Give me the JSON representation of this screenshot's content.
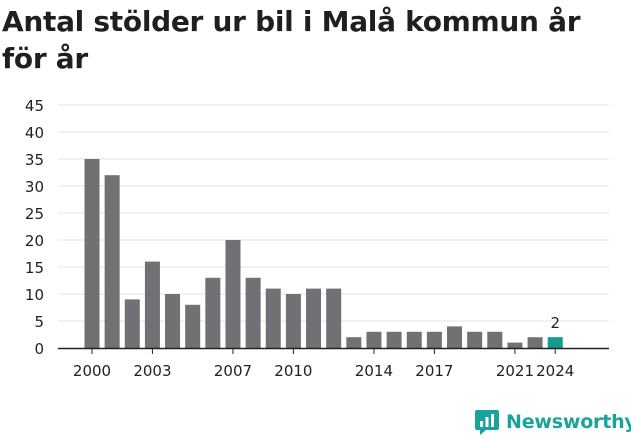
{
  "title": "Antal stölder ur bil i Malå kommun år för år",
  "brand": {
    "name": "Newsworthy",
    "logo_icon": "newsworthy-logo-icon",
    "color": "#18a49c"
  },
  "chart_data": {
    "type": "bar",
    "title": "Antal stölder ur bil i Malå kommun år för år",
    "xlabel": "",
    "ylabel": "",
    "ylim": [
      0,
      45
    ],
    "yticks": [
      0,
      5,
      10,
      15,
      20,
      25,
      30,
      35,
      40,
      45
    ],
    "grid": true,
    "categories": [
      "2000",
      "2001",
      "2002",
      "2003",
      "2004",
      "2005",
      "2006",
      "2007",
      "2008",
      "2009",
      "2010",
      "2011",
      "2012",
      "2013",
      "2014",
      "2015",
      "2016",
      "2017",
      "2018",
      "2019",
      "2020",
      "2021",
      "2022",
      "2024"
    ],
    "xtick_labels": [
      "2000",
      "2003",
      "2007",
      "2010",
      "2014",
      "2017",
      "2021",
      "2024"
    ],
    "values": [
      35,
      32,
      9,
      16,
      10,
      8,
      13,
      20,
      13,
      11,
      10,
      11,
      11,
      2,
      3,
      3,
      3,
      3,
      4,
      3,
      3,
      1,
      2,
      2
    ],
    "bar_color": "#717075",
    "highlight_color": "#159a8f",
    "highlight_category": "2024",
    "highlight_label": "2"
  }
}
